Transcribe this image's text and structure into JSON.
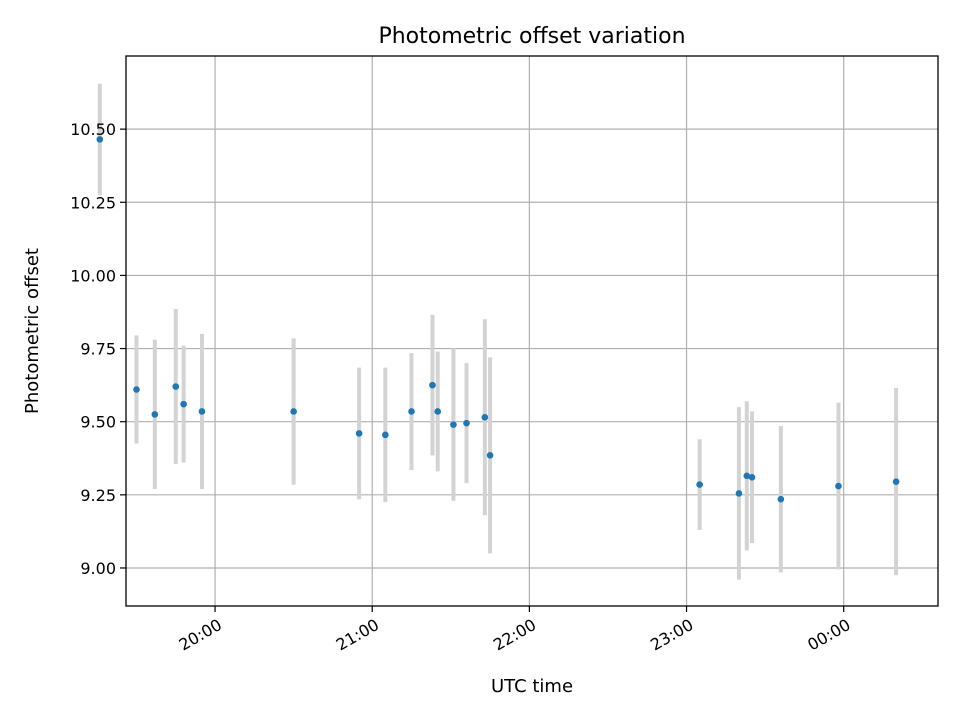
{
  "chart_data": {
    "type": "scatter",
    "title": "Photometric offset variation",
    "xlabel": "UTC time",
    "ylabel": "Photometric offset",
    "xlim": [
      "19:26",
      "00:36"
    ],
    "ylim": [
      8.87,
      10.75
    ],
    "grid": true,
    "x_ticks": [
      "20:00",
      "21:00",
      "22:00",
      "23:00",
      "00:00"
    ],
    "y_ticks": [
      "9.00",
      "9.25",
      "9.50",
      "9.75",
      "10.00",
      "10.25",
      "10.50"
    ],
    "y_tick_values": [
      9.0,
      9.25,
      9.5,
      9.75,
      10.0,
      10.25,
      10.5
    ],
    "colors": {
      "point": "#1f77b4",
      "errorbar": "#d3d3d3",
      "grid": "#b0b0b0"
    },
    "points": [
      {
        "time": "19:16",
        "y": 10.465,
        "err": 0.19
      },
      {
        "time": "19:30",
        "y": 9.61,
        "err": 0.185
      },
      {
        "time": "19:37",
        "y": 9.525,
        "err": 0.255
      },
      {
        "time": "19:45",
        "y": 9.62,
        "err": 0.265
      },
      {
        "time": "19:48",
        "y": 9.56,
        "err": 0.2
      },
      {
        "time": "19:55",
        "y": 9.535,
        "err": 0.265
      },
      {
        "time": "20:30",
        "y": 9.535,
        "err": 0.25
      },
      {
        "time": "20:55",
        "y": 9.46,
        "err": 0.225
      },
      {
        "time": "21:05",
        "y": 9.455,
        "err": 0.23
      },
      {
        "time": "21:15",
        "y": 9.535,
        "err": 0.2
      },
      {
        "time": "21:23",
        "y": 9.625,
        "err": 0.24
      },
      {
        "time": "21:25",
        "y": 9.535,
        "err": 0.205
      },
      {
        "time": "21:31",
        "y": 9.49,
        "err": 0.26
      },
      {
        "time": "21:36",
        "y": 9.495,
        "err": 0.205
      },
      {
        "time": "21:43",
        "y": 9.515,
        "err": 0.335
      },
      {
        "time": "21:45",
        "y": 9.385,
        "err": 0.335
      },
      {
        "time": "23:05",
        "y": 9.285,
        "err": 0.155
      },
      {
        "time": "23:20",
        "y": 9.255,
        "err": 0.295
      },
      {
        "time": "23:23",
        "y": 9.315,
        "err": 0.255
      },
      {
        "time": "23:25",
        "y": 9.31,
        "err": 0.225
      },
      {
        "time": "23:36",
        "y": 9.235,
        "err": 0.25
      },
      {
        "time": "23:58",
        "y": 9.28,
        "err": 0.285
      },
      {
        "time": "00:20",
        "y": 9.295,
        "err": 0.32
      }
    ]
  }
}
